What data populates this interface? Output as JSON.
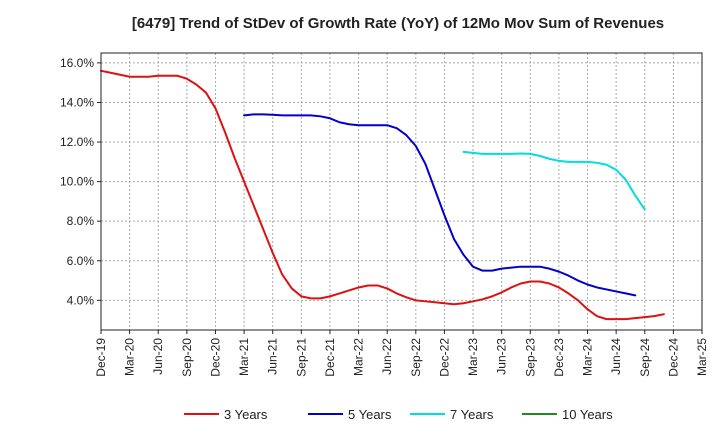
{
  "chart_data": {
    "type": "line",
    "title": "[6479]  Trend of StDev of Growth Rate (YoY) of 12Mo Mov Sum of Revenues",
    "xlabel": "",
    "ylabel": "",
    "ylim": [
      2.5,
      16.5
    ],
    "y_ticks": [
      4.0,
      6.0,
      8.0,
      10.0,
      12.0,
      14.0,
      16.0
    ],
    "y_tick_labels": [
      "4.0%",
      "6.0%",
      "8.0%",
      "10.0%",
      "12.0%",
      "14.0%",
      "16.0%"
    ],
    "x_ticks": [
      "Dec-19",
      "Mar-20",
      "Jun-20",
      "Sep-20",
      "Dec-20",
      "Mar-21",
      "Jun-21",
      "Sep-21",
      "Dec-21",
      "Mar-22",
      "Jun-22",
      "Sep-22",
      "Dec-22",
      "Mar-23",
      "Jun-23",
      "Sep-23",
      "Dec-23",
      "Mar-24",
      "Jun-24",
      "Sep-24",
      "Dec-24",
      "Mar-25"
    ],
    "grid": true,
    "legend_position": "bottom",
    "series": [
      {
        "name": "3 Years",
        "color": "#dd1111",
        "values": [
          15.6,
          15.5,
          15.4,
          15.3,
          15.3,
          15.3,
          15.35,
          15.35,
          15.35,
          15.2,
          14.9,
          14.5,
          13.7,
          12.5,
          11.2,
          10.0,
          8.8,
          7.6,
          6.4,
          5.3,
          4.6,
          4.2,
          4.1,
          4.1,
          4.2,
          4.35,
          4.5,
          4.65,
          4.75,
          4.75,
          4.6,
          4.35,
          4.15,
          4.0,
          3.95,
          3.9,
          3.85,
          3.8,
          3.85,
          3.95,
          4.05,
          4.2,
          4.4,
          4.65,
          4.85,
          4.95,
          4.95,
          4.85,
          4.65,
          4.35,
          4.0,
          3.55,
          3.2,
          3.05,
          3.05,
          3.05,
          3.1,
          3.15,
          3.2,
          3.3
        ]
      },
      {
        "name": "5 Years",
        "color": "#0000cc",
        "values": [
          null,
          null,
          null,
          null,
          null,
          null,
          null,
          null,
          null,
          null,
          null,
          null,
          null,
          null,
          null,
          13.35,
          13.4,
          13.4,
          13.38,
          13.35,
          13.35,
          13.35,
          13.35,
          13.3,
          13.2,
          13.0,
          12.9,
          12.85,
          12.85,
          12.85,
          12.85,
          12.7,
          12.35,
          11.8,
          10.9,
          9.6,
          8.3,
          7.1,
          6.3,
          5.7,
          5.5,
          5.5,
          5.6,
          5.65,
          5.7,
          5.7,
          5.7,
          5.6,
          5.45,
          5.25,
          5.0,
          4.8,
          4.65,
          4.55,
          4.45,
          4.35,
          4.25
        ]
      },
      {
        "name": "7 Years",
        "color": "#00dddd",
        "values": [
          null,
          null,
          null,
          null,
          null,
          null,
          null,
          null,
          null,
          null,
          null,
          null,
          null,
          null,
          null,
          null,
          null,
          null,
          null,
          null,
          null,
          null,
          null,
          null,
          null,
          null,
          null,
          null,
          null,
          null,
          null,
          null,
          null,
          null,
          null,
          null,
          null,
          null,
          11.5,
          11.45,
          11.4,
          11.4,
          11.4,
          11.4,
          11.42,
          11.4,
          11.3,
          11.15,
          11.05,
          11.0,
          11.0,
          11.0,
          10.95,
          10.85,
          10.6,
          10.1,
          9.3,
          8.6
        ]
      },
      {
        "name": "10 Years",
        "color": "#228822",
        "values": []
      }
    ]
  }
}
